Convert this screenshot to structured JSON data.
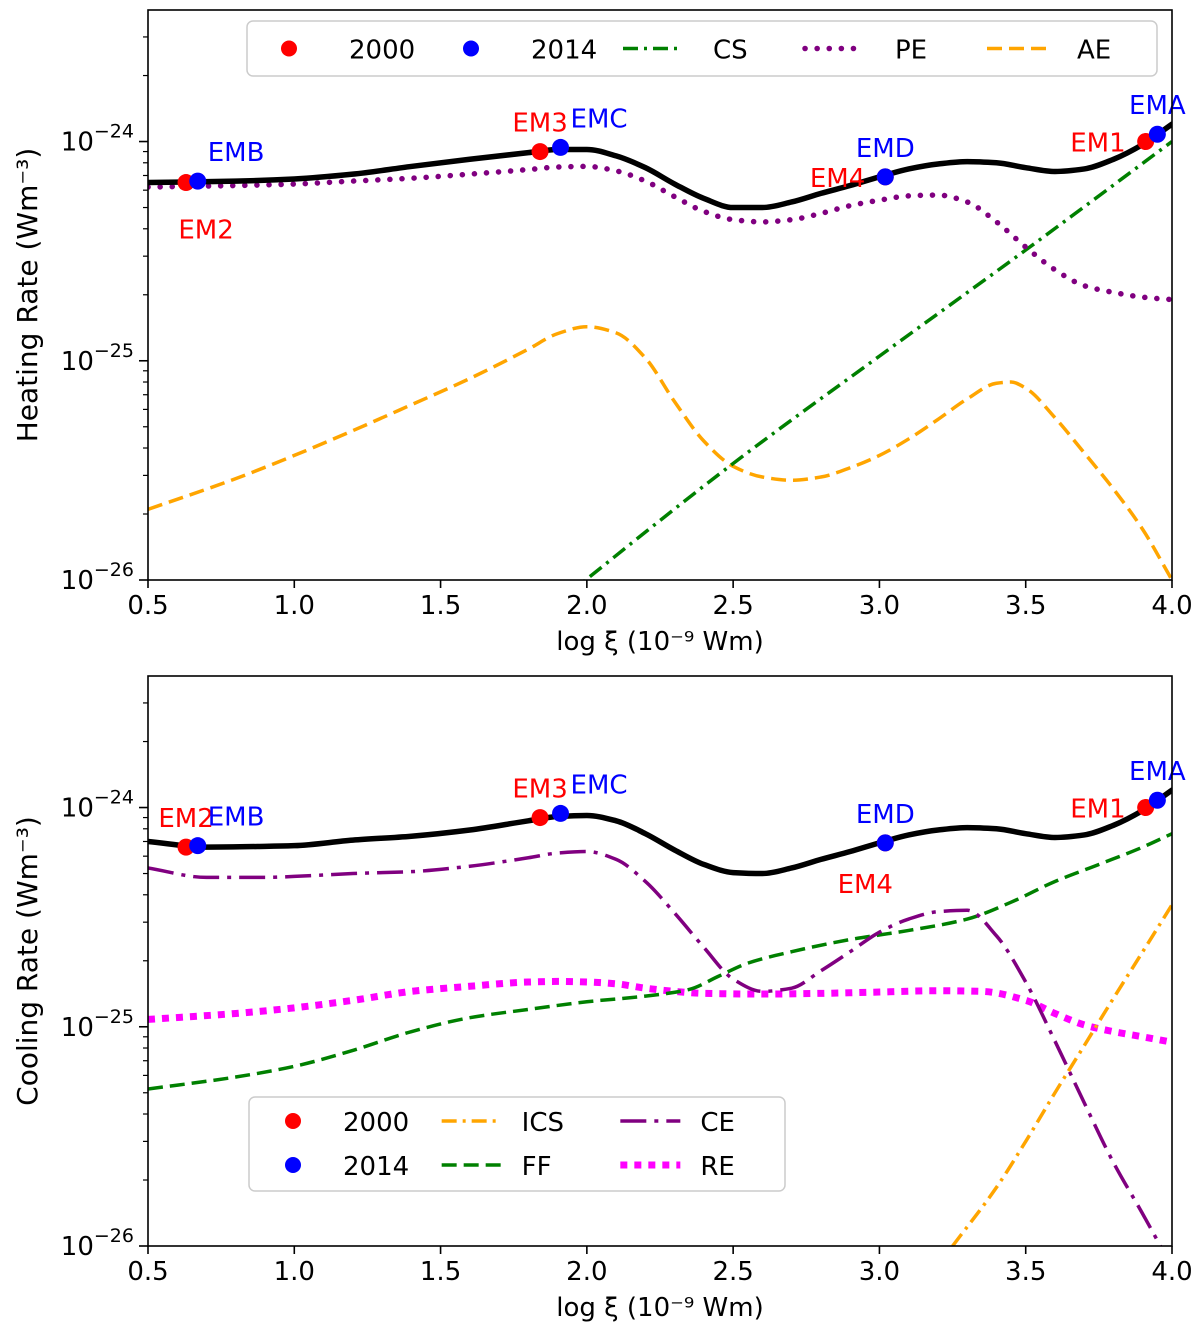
{
  "chart_data": [
    {
      "type": "line",
      "panel": "top",
      "xlabel": "log ξ (10⁻⁹ Wm)",
      "ylabel": "Heating Rate (Wm⁻³)",
      "xlim": [
        0.5,
        4.0
      ],
      "ylim_log10": [
        -26,
        -23.4
      ],
      "xticks": [
        "0.5",
        "1.0",
        "1.5",
        "2.0",
        "2.5",
        "3.0",
        "3.5",
        "4.0"
      ],
      "yticks": [
        {
          "base": "10",
          "exp": "−26",
          "log": -26
        },
        {
          "base": "10",
          "exp": "−25",
          "log": -25
        },
        {
          "base": "10",
          "exp": "−24",
          "log": -24
        }
      ],
      "legend": {
        "placement": "top",
        "entries": [
          {
            "label": "2000",
            "kind": "marker",
            "color": "#ff0000"
          },
          {
            "label": "2014",
            "kind": "marker",
            "color": "#0000ff"
          },
          {
            "label": "CS",
            "kind": "dashdot",
            "color": "#008000"
          },
          {
            "label": "PE",
            "kind": "dotted",
            "color": "#800080"
          },
          {
            "label": "AE",
            "kind": "dashed",
            "color": "#ffa500"
          }
        ]
      },
      "series": [
        {
          "name": "Total",
          "style": "solid",
          "color": "#000000",
          "x": [
            0.5,
            0.8,
            1.0,
            1.2,
            1.4,
            1.6,
            1.8,
            1.9,
            2.0,
            2.1,
            2.2,
            2.3,
            2.4,
            2.5,
            2.6,
            2.7,
            2.8,
            2.9,
            3.0,
            3.1,
            3.2,
            3.3,
            3.4,
            3.5,
            3.6,
            3.7,
            3.8,
            3.9,
            4.0
          ],
          "y": [
            6.5e-25,
            6.6e-25,
            6.75e-25,
            7.1e-25,
            7.7e-25,
            8.3e-25,
            8.9e-25,
            9.2e-25,
            9.2e-25,
            8.6e-25,
            7.6e-25,
            6.4e-25,
            5.5e-25,
            5e-25,
            5e-25,
            5.3e-25,
            5.8e-25,
            6.3e-25,
            6.9e-25,
            7.5e-25,
            7.9e-25,
            8.1e-25,
            8e-25,
            7.6e-25,
            7.3e-25,
            7.5e-25,
            8.3e-25,
            9.7e-25,
            1.2e-24
          ]
        },
        {
          "name": "CS",
          "style": "dashdot",
          "color": "#008000",
          "x": [
            1.85,
            2.5,
            3.0,
            3.5,
            4.0
          ],
          "y": [
            7e-27,
            3.4e-26,
            1.05e-25,
            3.2e-25,
            1e-24
          ]
        },
        {
          "name": "PE",
          "style": "dotted",
          "color": "#800080",
          "x": [
            0.5,
            0.8,
            1.0,
            1.2,
            1.4,
            1.6,
            1.8,
            1.9,
            2.0,
            2.1,
            2.2,
            2.3,
            2.4,
            2.5,
            2.6,
            2.7,
            2.8,
            2.9,
            3.0,
            3.1,
            3.2,
            3.3,
            3.4,
            3.5,
            3.6,
            3.7,
            3.8,
            3.9,
            4.0
          ],
          "y": [
            6.2e-25,
            6.3e-25,
            6.4e-25,
            6.6e-25,
            6.8e-25,
            7.1e-25,
            7.45e-25,
            7.65e-25,
            7.7e-25,
            7.35e-25,
            6.6e-25,
            5.6e-25,
            4.8e-25,
            4.4e-25,
            4.3e-25,
            4.4e-25,
            4.7e-25,
            5.1e-25,
            5.4e-25,
            5.65e-25,
            5.7e-25,
            5.3e-25,
            4.3e-25,
            3.3e-25,
            2.6e-25,
            2.2e-25,
            2.05e-25,
            1.95e-25,
            1.9e-25
          ]
        },
        {
          "name": "AE",
          "style": "dashed",
          "color": "#ffa500",
          "x": [
            0.5,
            0.8,
            1.0,
            1.2,
            1.4,
            1.6,
            1.8,
            1.9,
            2.0,
            2.1,
            2.2,
            2.3,
            2.4,
            2.5,
            2.6,
            2.7,
            2.8,
            2.9,
            3.0,
            3.1,
            3.2,
            3.3,
            3.4,
            3.45,
            3.5,
            3.6,
            3.7,
            3.8,
            3.9,
            4.0
          ],
          "y": [
            2.1e-26,
            2.9e-26,
            3.7e-26,
            4.8e-26,
            6.3e-26,
            8.3e-26,
            1.13e-25,
            1.33e-25,
            1.43e-25,
            1.34e-25,
            1.03e-25,
            6.5e-26,
            4.3e-26,
            3.3e-26,
            2.95e-26,
            2.85e-26,
            2.95e-26,
            3.25e-26,
            3.7e-26,
            4.4e-26,
            5.4e-26,
            6.7e-26,
            7.9e-26,
            8e-26,
            7.5e-26,
            5.5e-26,
            3.8e-26,
            2.6e-26,
            1.7e-26,
            1e-26
          ]
        }
      ],
      "points": [
        {
          "name": "EM2",
          "x": 0.63,
          "y": 6.5e-25,
          "color": "#ff0000",
          "label_pos": "below"
        },
        {
          "name": "EMB",
          "x": 0.67,
          "y": 6.6e-25,
          "color": "#0000ff",
          "label_pos": "above-right"
        },
        {
          "name": "EM3",
          "x": 1.84,
          "y": 9e-25,
          "color": "#ff0000",
          "label_pos": "above"
        },
        {
          "name": "EMC",
          "x": 1.91,
          "y": 9.4e-25,
          "color": "#0000ff",
          "label_pos": "above-right"
        },
        {
          "name": "EM4",
          "x": 3.02,
          "y": 6.9e-25,
          "color": "#ff0000",
          "label_pos": "left"
        },
        {
          "name": "EMD",
          "x": 3.02,
          "y": 6.9e-25,
          "color": "#0000ff",
          "label_pos": "above"
        },
        {
          "name": "EM1",
          "x": 3.91,
          "y": 1e-24,
          "color": "#ff0000",
          "label_pos": "left"
        },
        {
          "name": "EMA",
          "x": 3.95,
          "y": 1.08e-24,
          "color": "#0000ff",
          "label_pos": "above"
        }
      ]
    },
    {
      "type": "line",
      "panel": "bottom",
      "xlabel": "log ξ (10⁻⁹ Wm)",
      "ylabel": "Cooling Rate (Wm⁻³)",
      "xlim": [
        0.5,
        4.0
      ],
      "ylim_log10": [
        -26,
        -23.4
      ],
      "xticks": [
        "0.5",
        "1.0",
        "1.5",
        "2.0",
        "2.5",
        "3.0",
        "3.5",
        "4.0"
      ],
      "yticks": [
        {
          "base": "10",
          "exp": "−26",
          "log": -26
        },
        {
          "base": "10",
          "exp": "−25",
          "log": -25
        },
        {
          "base": "10",
          "exp": "−24",
          "log": -24
        }
      ],
      "legend": {
        "placement": "lower-left",
        "entries": [
          {
            "label": "2000",
            "kind": "marker",
            "color": "#ff0000"
          },
          {
            "label": "2014",
            "kind": "marker",
            "color": "#0000ff"
          },
          {
            "label": "ICS",
            "kind": "dashdot",
            "color": "#ffa500"
          },
          {
            "label": "FF",
            "kind": "dashed",
            "color": "#008000"
          },
          {
            "label": "CE",
            "kind": "dashdot-long",
            "color": "#800080"
          },
          {
            "label": "RE",
            "kind": "dotted",
            "color": "#ff00ff"
          }
        ]
      },
      "series": [
        {
          "name": "Total",
          "style": "solid",
          "color": "#000000",
          "x": [
            0.5,
            0.7,
            0.9,
            1.0,
            1.2,
            1.4,
            1.6,
            1.8,
            1.9,
            2.0,
            2.1,
            2.2,
            2.3,
            2.4,
            2.5,
            2.6,
            2.7,
            2.8,
            2.9,
            3.0,
            3.1,
            3.2,
            3.3,
            3.4,
            3.5,
            3.6,
            3.7,
            3.8,
            3.9,
            4.0
          ],
          "y": [
            7e-25,
            6.6e-25,
            6.65e-25,
            6.7e-25,
            7.1e-25,
            7.4e-25,
            7.9e-25,
            8.7e-25,
            9.1e-25,
            9.2e-25,
            8.7e-25,
            7.6e-25,
            6.4e-25,
            5.5e-25,
            5.05e-25,
            5e-25,
            5.3e-25,
            5.8e-25,
            6.3e-25,
            6.9e-25,
            7.5e-25,
            7.9e-25,
            8.1e-25,
            8e-25,
            7.6e-25,
            7.3e-25,
            7.5e-25,
            8.3e-25,
            9.7e-25,
            1.2e-24
          ]
        },
        {
          "name": "ICS",
          "style": "dashdot",
          "color": "#ffa500",
          "x": [
            3.25,
            3.4,
            3.5,
            3.6,
            3.7,
            3.8,
            3.9,
            4.0
          ],
          "y": [
            1e-26,
            1.85e-26,
            3e-26,
            5e-26,
            8.2e-26,
            1.35e-25,
            2.2e-25,
            3.6e-25
          ]
        },
        {
          "name": "FF",
          "style": "dashed",
          "color": "#008000",
          "x": [
            0.5,
            0.8,
            1.0,
            1.2,
            1.4,
            1.6,
            1.8,
            2.0,
            2.2,
            2.35,
            2.45,
            2.55,
            2.7,
            2.9,
            3.1,
            3.3,
            3.45,
            3.6,
            3.75,
            3.9,
            4.0
          ],
          "y": [
            5.2e-26,
            5.9e-26,
            6.6e-26,
            7.8e-26,
            9.5e-26,
            1.1e-25,
            1.2e-25,
            1.3e-25,
            1.38e-25,
            1.48e-25,
            1.7e-25,
            1.95e-25,
            2.2e-25,
            2.5e-25,
            2.75e-25,
            3.1e-25,
            3.7e-25,
            4.6e-25,
            5.5e-25,
            6.6e-25,
            7.6e-25
          ]
        },
        {
          "name": "CE",
          "style": "dashdot-long",
          "color": "#800080",
          "x": [
            0.5,
            0.7,
            0.9,
            1.0,
            1.2,
            1.4,
            1.6,
            1.8,
            1.9,
            2.0,
            2.1,
            2.2,
            2.3,
            2.4,
            2.5,
            2.6,
            2.7,
            2.8,
            2.9,
            3.0,
            3.1,
            3.2,
            3.3,
            3.4,
            3.5,
            3.6,
            3.7,
            3.8,
            3.9,
            4.0
          ],
          "y": [
            5.3e-25,
            4.8e-25,
            4.8e-25,
            4.85e-25,
            5e-25,
            5.1e-25,
            5.4e-25,
            5.9e-25,
            6.2e-25,
            6.3e-25,
            5.8e-25,
            4.6e-25,
            3.3e-25,
            2.3e-25,
            1.65e-25,
            1.45e-25,
            1.5e-25,
            1.8e-25,
            2.2e-25,
            2.7e-25,
            3.1e-25,
            3.35e-25,
            3.4e-25,
            2.6e-25,
            1.6e-25,
            8.6e-26,
            4.5e-26,
            2.4e-26,
            1.4e-26,
            8e-27
          ]
        },
        {
          "name": "RE",
          "style": "dotted",
          "color": "#ff00ff",
          "x": [
            0.5,
            0.8,
            1.0,
            1.2,
            1.4,
            1.6,
            1.8,
            1.9,
            2.0,
            2.1,
            2.2,
            2.3,
            2.4,
            2.6,
            2.8,
            3.0,
            3.2,
            3.35,
            3.5,
            3.6,
            3.7,
            3.8,
            3.9,
            4.0
          ],
          "y": [
            1.08e-25,
            1.15e-25,
            1.22e-25,
            1.32e-25,
            1.45e-25,
            1.53e-25,
            1.6e-25,
            1.61e-25,
            1.6e-25,
            1.57e-25,
            1.5e-25,
            1.45e-25,
            1.42e-25,
            1.41e-25,
            1.42e-25,
            1.44e-25,
            1.46e-25,
            1.45e-25,
            1.32e-25,
            1.15e-25,
            1.02e-25,
            9.5e-26,
            9e-26,
            8.5e-26
          ]
        }
      ],
      "points": [
        {
          "name": "EM2",
          "x": 0.63,
          "y": 6.6e-25,
          "color": "#ff0000",
          "label_pos": "above"
        },
        {
          "name": "EMB",
          "x": 0.67,
          "y": 6.7e-25,
          "color": "#0000ff",
          "label_pos": "above-right"
        },
        {
          "name": "EM3",
          "x": 1.84,
          "y": 9e-25,
          "color": "#ff0000",
          "label_pos": "above"
        },
        {
          "name": "EMC",
          "x": 1.91,
          "y": 9.4e-25,
          "color": "#0000ff",
          "label_pos": "above-right"
        },
        {
          "name": "EM4",
          "x": 3.02,
          "y": 6.9e-25,
          "color": "#ff0000",
          "label_pos": "below-left"
        },
        {
          "name": "EMD",
          "x": 3.02,
          "y": 6.9e-25,
          "color": "#0000ff",
          "label_pos": "above"
        },
        {
          "name": "EM1",
          "x": 3.91,
          "y": 1e-24,
          "color": "#ff0000",
          "label_pos": "left"
        },
        {
          "name": "EMA",
          "x": 3.95,
          "y": 1.08e-24,
          "color": "#0000ff",
          "label_pos": "above"
        }
      ]
    }
  ]
}
